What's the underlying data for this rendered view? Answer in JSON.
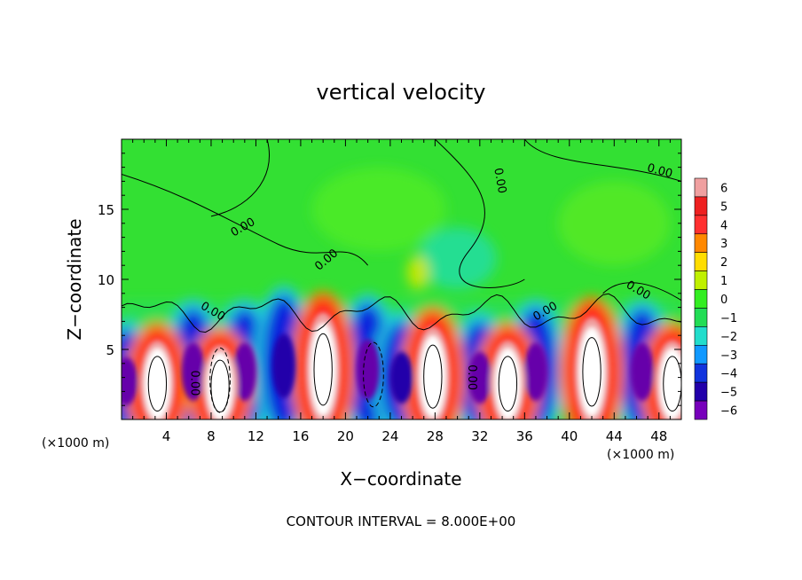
{
  "chart_data": {
    "type": "heatmap",
    "title": "vertical velocity",
    "xlabel": "X−coordinate",
    "ylabel": "Z−coordinate",
    "x_unit_left": "(×1000 m)",
    "x_unit_right": "(×1000 m)",
    "xlim": [
      0,
      50
    ],
    "ylim": [
      0,
      20
    ],
    "x_ticks": [
      4,
      8,
      12,
      16,
      20,
      24,
      28,
      32,
      36,
      40,
      44,
      48
    ],
    "y_ticks": [
      5,
      10,
      15
    ],
    "colorbar": {
      "levels": [
        6,
        5,
        4,
        3,
        2,
        1,
        0,
        -1,
        -2,
        -3,
        -4,
        -5,
        -6
      ],
      "labels": [
        "6",
        "5",
        "4",
        "3",
        "2",
        "1",
        "0",
        "−1",
        "−2",
        "−3",
        "−4",
        "−5",
        "−6"
      ],
      "colors": [
        "#f0a0a0",
        "#ee2020",
        "#ff3030",
        "#ff8800",
        "#ffdd00",
        "#c0f000",
        "#33ee22",
        "#22dd55",
        "#22ddcc",
        "#1199ff",
        "#1133dd",
        "#2200aa",
        "#7700bb"
      ]
    },
    "contour_label": "0.00",
    "footnote": "CONTOUR INTERVAL = 8.000E+00",
    "background_color": "#33e033",
    "updrafts": [
      {
        "x": 3.2,
        "z": 3.0,
        "peak": 8
      },
      {
        "x": 8.8,
        "z": 2.8,
        "peak": 9
      },
      {
        "x": 18.0,
        "z": 4.2,
        "peak": 9
      },
      {
        "x": 27.8,
        "z": 3.6,
        "peak": 8
      },
      {
        "x": 34.5,
        "z": 3.0,
        "peak": 8
      },
      {
        "x": 42.0,
        "z": 4.0,
        "peak": 9
      },
      {
        "x": 49.2,
        "z": 3.0,
        "peak": 6
      }
    ],
    "downdrafts": [
      {
        "x": 0.4,
        "z": 3.2,
        "peak": -6
      },
      {
        "x": 6.4,
        "z": 4.0,
        "peak": -6
      },
      {
        "x": 11.0,
        "z": 4.0,
        "peak": -6
      },
      {
        "x": 14.5,
        "z": 4.5,
        "peak": -5
      },
      {
        "x": 22.0,
        "z": 4.2,
        "peak": -6
      },
      {
        "x": 25.0,
        "z": 3.5,
        "peak": -5
      },
      {
        "x": 32.0,
        "z": 3.5,
        "peak": -6
      },
      {
        "x": 37.0,
        "z": 4.0,
        "peak": -6
      },
      {
        "x": 46.5,
        "z": 4.0,
        "peak": -6
      }
    ]
  }
}
